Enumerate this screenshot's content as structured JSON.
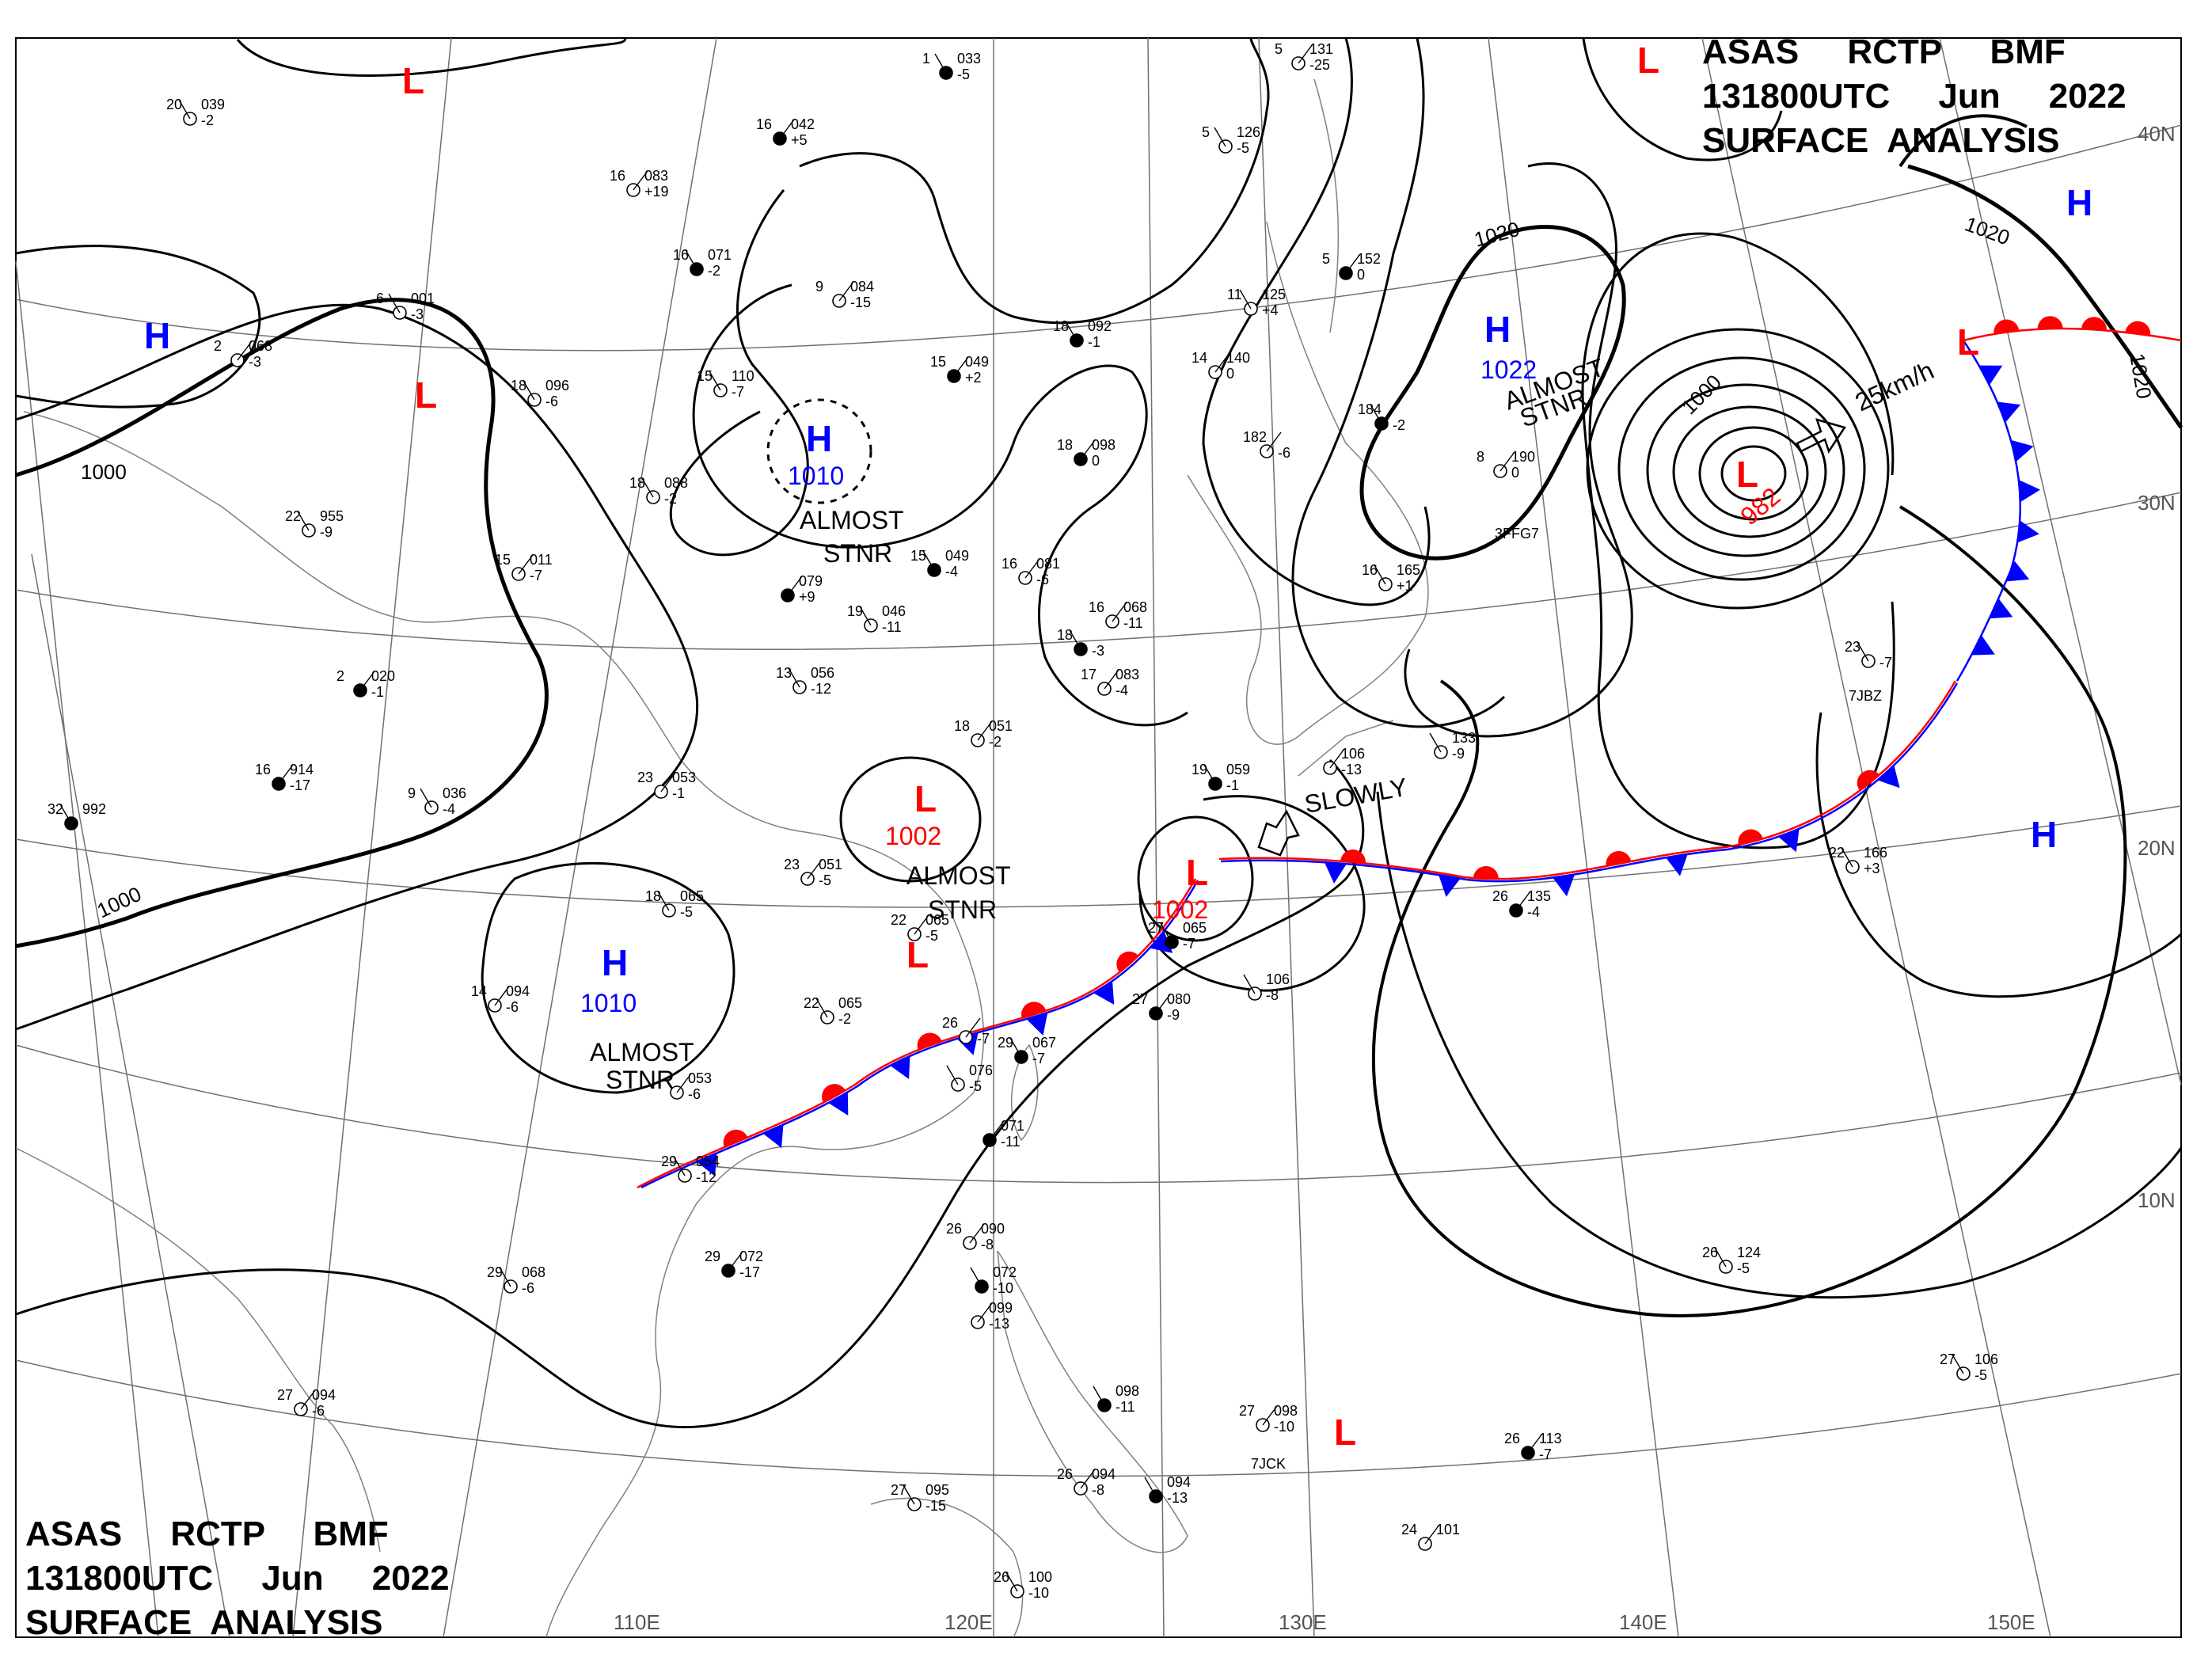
{
  "header": {
    "top_right": {
      "line1": "ASAS     RCTP     BMF",
      "line2": "131800UTC     Jun     2022",
      "line3": "SURFACE  ANALYSIS"
    },
    "bottom_left": {
      "line1": "ASAS     RCTP     BMF",
      "line2": "131800UTC     Jun     2022",
      "line3": "SURFACE  ANALYSIS"
    }
  },
  "graticule": {
    "longitudes": [
      "110E",
      "120E",
      "130E",
      "140E",
      "150E"
    ],
    "latitudes": [
      "40N",
      "30N",
      "20N",
      "10N"
    ]
  },
  "isobars": {
    "labels": [
      "1000",
      "1000",
      "1000",
      "1020",
      "1020",
      "1020",
      "1000"
    ]
  },
  "pressure_systems": [
    {
      "type": "L",
      "color": "#ff0000"
    },
    {
      "type": "L",
      "color": "#ff0000"
    },
    {
      "type": "L",
      "color": "#ff0000"
    },
    {
      "type": "H",
      "color": "#0000ff"
    },
    {
      "type": "L",
      "color": "#ff0000"
    },
    {
      "type": "H",
      "color": "#0000ff",
      "pressure": "1010",
      "motion": "ALMOST",
      "motion2": "STNR"
    },
    {
      "type": "H",
      "color": "#0000ff",
      "pressure": "1022",
      "motion": "ALMOST",
      "motion2": "STNR"
    },
    {
      "type": "L",
      "color": "#ff0000",
      "pressure": "982",
      "motion": "25km/h"
    },
    {
      "type": "H",
      "color": "#0000ff"
    },
    {
      "type": "L",
      "color": "#ff0000",
      "pressure": "1002",
      "motion": "ALMOST",
      "motion2": "STNR"
    },
    {
      "type": "L",
      "color": "#ff0000",
      "pressure": "1002",
      "motion": "SLOWLY"
    },
    {
      "type": "H",
      "color": "#0000ff",
      "pressure": "1010",
      "motion": "ALMOST",
      "motion2": "STNR"
    },
    {
      "type": "H",
      "color": "#0000ff"
    },
    {
      "type": "L",
      "color": "#ff0000"
    },
    {
      "type": "L",
      "color": "#ff0000"
    }
  ],
  "fronts": {
    "warm_color": "#ff0000",
    "cold_color": "#0000ff"
  },
  "stations": [
    {
      "t": "1",
      "p": "033",
      "d": "-5"
    },
    {
      "t": "5",
      "p": "131",
      "d": "-25"
    },
    {
      "t": "20",
      "p": "039",
      "d": "-2"
    },
    {
      "t": "16",
      "p": "042",
      "d": "+5"
    },
    {
      "t": "5",
      "p": "126",
      "d": "-5"
    },
    {
      "t": "16",
      "p": "083",
      "d": "+19"
    },
    {
      "t": "16",
      "p": "071",
      "d": "-2"
    },
    {
      "t": "9",
      "p": "084",
      "d": "-15"
    },
    {
      "t": "11",
      "p": "125",
      "d": "+4"
    },
    {
      "t": "5",
      "p": "152",
      "d": "0"
    },
    {
      "t": "6",
      "p": "001",
      "d": "-3"
    },
    {
      "t": "2",
      "p": "068",
      "d": "-3"
    },
    {
      "t": "18",
      "p": "092",
      "d": "-1"
    },
    {
      "t": "14",
      "p": "140",
      "d": "0"
    },
    {
      "t": "18",
      "p": "096",
      "d": "-6"
    },
    {
      "t": "15",
      "p": "049",
      "d": "+2"
    },
    {
      "t": "15",
      "p": "110",
      "d": "-7"
    },
    {
      "t": "182",
      "p": "",
      "d": "-6"
    },
    {
      "t": "184",
      "p": "",
      "d": "-2"
    },
    {
      "t": "8",
      "p": "190",
      "d": "0"
    },
    {
      "t": "18",
      "p": "088",
      "d": "-2"
    },
    {
      "t": "18",
      "p": "098",
      "d": "0"
    },
    {
      "t": "22",
      "p": "955",
      "d": "-9"
    },
    {
      "t": "15",
      "p": "011",
      "d": "-7"
    },
    {
      "t": "15",
      "p": "049",
      "d": "-4"
    },
    {
      "t": "16",
      "p": "081",
      "d": "-6"
    },
    {
      "t": "16",
      "p": "165",
      "d": "+1"
    },
    {
      "t": "",
      "p": "079",
      "d": "+9"
    },
    {
      "t": "19",
      "p": "046",
      "d": "-11"
    },
    {
      "t": "16",
      "p": "068",
      "d": "-11"
    },
    {
      "t": "18",
      "p": "",
      "d": "-3"
    },
    {
      "t": "17",
      "p": "083",
      "d": "-4"
    },
    {
      "t": "23",
      "p": "",
      "d": "-7"
    },
    {
      "t": "2",
      "p": "020",
      "d": "-1"
    },
    {
      "t": "13",
      "p": "056",
      "d": "-12"
    },
    {
      "t": "18",
      "p": "051",
      "d": "-2"
    },
    {
      "t": "19",
      "p": "059",
      "d": "-1"
    },
    {
      "t": "",
      "p": "106",
      "d": "-13"
    },
    {
      "t": "",
      "p": "133",
      "d": "-9"
    },
    {
      "t": "16",
      "p": "914",
      "d": "-17"
    },
    {
      "t": "9",
      "p": "036",
      "d": "-4"
    },
    {
      "t": "23",
      "p": "053",
      "d": "-1"
    },
    {
      "t": "32",
      "p": "992",
      "d": ""
    },
    {
      "t": "23",
      "p": "051",
      "d": "-5"
    },
    {
      "t": "18",
      "p": "065",
      "d": "-5"
    },
    {
      "t": "26",
      "p": "135",
      "d": "-4"
    },
    {
      "t": "22",
      "p": "166",
      "d": "+3"
    },
    {
      "t": "22",
      "p": "065",
      "d": "-5"
    },
    {
      "t": "27",
      "p": "065",
      "d": "-7"
    },
    {
      "t": "14",
      "p": "094",
      "d": "-6"
    },
    {
      "t": "22",
      "p": "065",
      "d": "-2"
    },
    {
      "t": "27",
      "p": "080",
      "d": "-9"
    },
    {
      "t": "",
      "p": "106",
      "d": "-8"
    },
    {
      "t": "26",
      "p": "",
      "d": "-7"
    },
    {
      "t": "29",
      "p": "067",
      "d": "-7"
    },
    {
      "t": "",
      "p": "053",
      "d": "-6"
    },
    {
      "t": "",
      "p": "076",
      "d": "-5"
    },
    {
      "t": "",
      "p": "071",
      "d": "-11"
    },
    {
      "t": "29",
      "p": "054",
      "d": "-12"
    },
    {
      "t": "26",
      "p": "090",
      "d": "-8"
    },
    {
      "t": "",
      "p": "072",
      "d": "-10"
    },
    {
      "t": "",
      "p": "099",
      "d": "-13"
    },
    {
      "t": "29",
      "p": "068",
      "d": "-6"
    },
    {
      "t": "29",
      "p": "072",
      "d": "-17"
    },
    {
      "t": "26",
      "p": "124",
      "d": "-5"
    },
    {
      "t": "27",
      "p": "094",
      "d": "-6"
    },
    {
      "t": "",
      "p": "098",
      "d": "-11"
    },
    {
      "t": "27",
      "p": "098",
      "d": "-10"
    },
    {
      "t": "27",
      "p": "106",
      "d": "-5"
    },
    {
      "t": "26",
      "p": "113",
      "d": "-7"
    },
    {
      "t": "27",
      "p": "095",
      "d": "-15"
    },
    {
      "t": "26",
      "p": "094",
      "d": "-8"
    },
    {
      "t": "",
      "p": "094",
      "d": "-13"
    },
    {
      "t": "24",
      "p": "101",
      "d": ""
    },
    {
      "t": "26",
      "p": "100",
      "d": "-10"
    }
  ],
  "ship_ids": [
    "3FFG7",
    "7JBZ",
    "7JCK"
  ]
}
